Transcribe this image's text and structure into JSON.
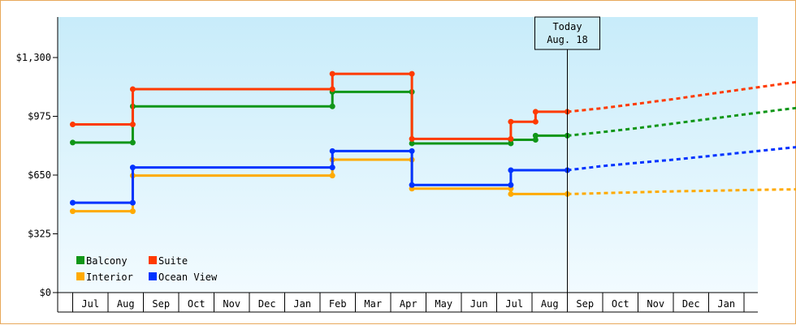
{
  "chart_data": {
    "type": "line",
    "step": true,
    "y_ticks": [
      "$1,300",
      "$975",
      "$650",
      "$325",
      "$0"
    ],
    "y_tick_values": [
      1300,
      975,
      650,
      325,
      0
    ],
    "ylim": [
      0,
      1300
    ],
    "x_ticks": [
      "Jul",
      "Aug",
      "Sep",
      "Oct",
      "Nov",
      "Dec",
      "Jan",
      "Feb",
      "Mar",
      "Apr",
      "May",
      "Jun",
      "Jul",
      "Aug",
      "Sep",
      "Oct",
      "Nov",
      "Dec",
      "Jan"
    ],
    "today_marker": {
      "line1": "Today",
      "line2": "Aug. 18"
    },
    "legend": [
      {
        "name": "Balcony",
        "color": "#109618"
      },
      {
        "name": "Suite",
        "color": "#ff3a00"
      },
      {
        "name": "Interior",
        "color": "#ffaa00"
      },
      {
        "name": "Ocean View",
        "color": "#0033ff"
      }
    ],
    "series": [
      {
        "name": "Balcony",
        "color": "#109618",
        "historical": [
          [
            0.0,
            830
          ],
          [
            1.7,
            830
          ],
          [
            1.7,
            1030
          ],
          [
            7.35,
            1030
          ],
          [
            7.35,
            1110
          ],
          [
            9.6,
            1110
          ],
          [
            9.6,
            825
          ],
          [
            12.4,
            825
          ],
          [
            12.4,
            845
          ],
          [
            13.1,
            845
          ],
          [
            13.1,
            868
          ],
          [
            14.0,
            868
          ]
        ],
        "projected": [
          [
            14.0,
            868
          ],
          [
            15.0,
            888
          ],
          [
            16.0,
            910
          ],
          [
            17.0,
            935
          ],
          [
            18.0,
            960
          ],
          [
            19.0,
            985
          ],
          [
            20.0,
            1010
          ],
          [
            21.0,
            1033
          ]
        ]
      },
      {
        "name": "Suite",
        "color": "#ff3a00",
        "historical": [
          [
            0.0,
            930
          ],
          [
            1.7,
            930
          ],
          [
            1.7,
            1125
          ],
          [
            7.35,
            1125
          ],
          [
            7.35,
            1210
          ],
          [
            9.6,
            1210
          ],
          [
            9.6,
            850
          ],
          [
            12.4,
            850
          ],
          [
            12.4,
            945
          ],
          [
            13.1,
            945
          ],
          [
            13.1,
            1000
          ],
          [
            14.0,
            1000
          ]
        ],
        "projected": [
          [
            14.0,
            1000
          ],
          [
            15.0,
            1020
          ],
          [
            16.0,
            1045
          ],
          [
            17.0,
            1070
          ],
          [
            18.0,
            1098
          ],
          [
            19.0,
            1125
          ],
          [
            20.0,
            1152
          ],
          [
            21.0,
            1178
          ]
        ]
      },
      {
        "name": "Interior",
        "color": "#ffaa00",
        "historical": [
          [
            0.0,
            450
          ],
          [
            1.7,
            450
          ],
          [
            1.7,
            647
          ],
          [
            7.35,
            647
          ],
          [
            7.35,
            735
          ],
          [
            9.6,
            735
          ],
          [
            9.6,
            575
          ],
          [
            12.4,
            575
          ],
          [
            12.4,
            545
          ],
          [
            14.0,
            545
          ]
        ],
        "projected": [
          [
            14.0,
            545
          ],
          [
            15.0,
            550
          ],
          [
            16.0,
            555
          ],
          [
            17.0,
            560
          ],
          [
            18.0,
            563
          ],
          [
            19.0,
            567
          ],
          [
            20.0,
            570
          ],
          [
            21.0,
            572
          ]
        ]
      },
      {
        "name": "Ocean View",
        "color": "#0033ff",
        "historical": [
          [
            0.0,
            497
          ],
          [
            1.7,
            497
          ],
          [
            1.7,
            692
          ],
          [
            7.35,
            692
          ],
          [
            7.35,
            783
          ],
          [
            9.6,
            783
          ],
          [
            9.6,
            595
          ],
          [
            12.4,
            595
          ],
          [
            12.4,
            677
          ],
          [
            14.0,
            677
          ]
        ],
        "projected": [
          [
            14.0,
            677
          ],
          [
            15.0,
            700
          ],
          [
            16.0,
            718
          ],
          [
            17.0,
            735
          ],
          [
            18.0,
            755
          ],
          [
            19.0,
            775
          ],
          [
            20.0,
            795
          ],
          [
            21.0,
            815
          ]
        ]
      }
    ]
  }
}
